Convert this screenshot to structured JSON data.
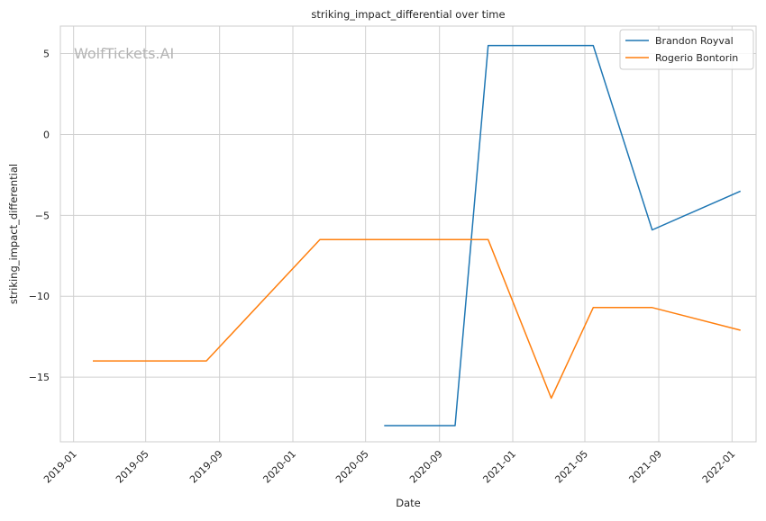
{
  "watermark": "WolfTickets.AI",
  "chart_data": {
    "type": "line",
    "title": "striking_impact_differential over time",
    "xlabel": "Date",
    "ylabel": "striking_impact_differential",
    "x_axis_type": "date",
    "xlim": [
      "2018-12-10",
      "2022-02-10"
    ],
    "ylim": [
      -19,
      6.7
    ],
    "x_ticks": [
      "2019-01-01",
      "2019-05-01",
      "2019-09-01",
      "2020-01-01",
      "2020-05-01",
      "2020-09-01",
      "2021-01-01",
      "2021-05-01",
      "2021-09-01",
      "2022-01-01"
    ],
    "x_tick_labels": [
      "2019-01",
      "2019-05",
      "2019-09",
      "2020-01",
      "2020-05",
      "2020-09",
      "2021-01",
      "2021-05",
      "2021-09",
      "2022-01"
    ],
    "y_ticks": [
      5,
      0,
      -5,
      -10,
      -15
    ],
    "y_tick_labels": [
      "5",
      "0",
      "−5",
      "−10",
      "−15"
    ],
    "grid": true,
    "legend_position": "top-right",
    "series": [
      {
        "name": "Brandon Royval",
        "color": "#1f77b4",
        "points": [
          {
            "x": "2020-06-01",
            "y": -18
          },
          {
            "x": "2020-09-27",
            "y": -18
          },
          {
            "x": "2020-11-21",
            "y": 5.5
          },
          {
            "x": "2021-05-15",
            "y": 5.5
          },
          {
            "x": "2021-08-21",
            "y": -5.9
          },
          {
            "x": "2022-01-15",
            "y": -3.5
          }
        ]
      },
      {
        "name": "Rogerio Bontorin",
        "color": "#ff7f0e",
        "points": [
          {
            "x": "2019-02-02",
            "y": -14
          },
          {
            "x": "2019-08-10",
            "y": -14
          },
          {
            "x": "2020-02-15",
            "y": -6.5
          },
          {
            "x": "2020-11-21",
            "y": -6.5
          },
          {
            "x": "2021-03-06",
            "y": -16.3
          },
          {
            "x": "2021-05-15",
            "y": -10.7
          },
          {
            "x": "2021-08-21",
            "y": -10.7
          },
          {
            "x": "2022-01-15",
            "y": -12.1
          }
        ]
      }
    ]
  }
}
